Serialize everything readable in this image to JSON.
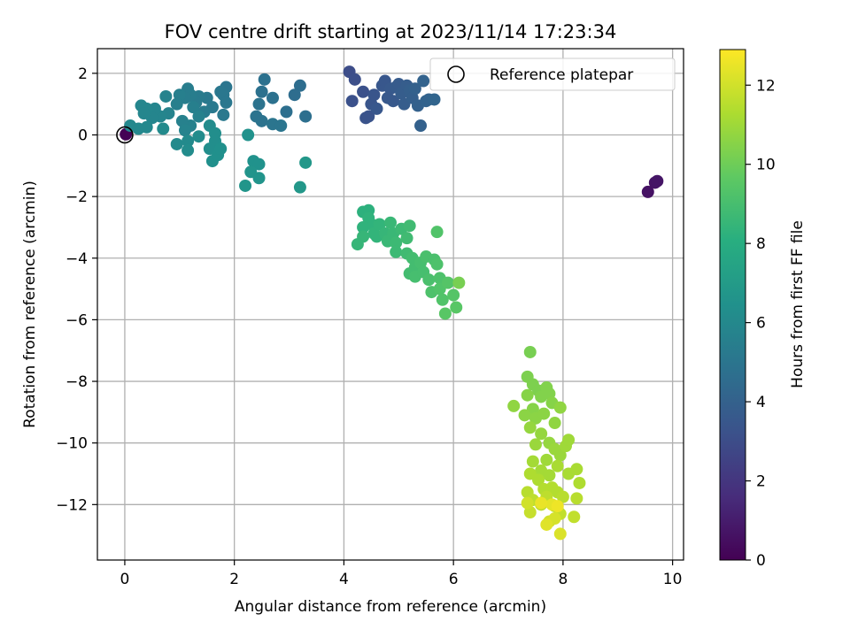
{
  "chart_data": {
    "type": "scatter",
    "title": "FOV centre drift starting at 2023/11/14 17:23:34",
    "xlabel": "Angular distance from reference (arcmin)",
    "ylabel": "Rotation from reference (arcmin)",
    "xlim": [
      -0.5,
      10.2
    ],
    "ylim": [
      -13.8,
      2.8
    ],
    "xticks": [
      0,
      2,
      4,
      6,
      8,
      10
    ],
    "yticks": [
      2,
      0,
      -2,
      -4,
      -6,
      -8,
      -10,
      -12
    ],
    "grid": true,
    "legend": {
      "position": "top-right",
      "entries": [
        "Reference platepar"
      ]
    },
    "reference_point": [
      0,
      0
    ],
    "colorbar": {
      "label": "Hours from first FF file",
      "colormap": "viridis",
      "range": [
        0,
        12.9
      ],
      "ticks": [
        0,
        2,
        4,
        6,
        8,
        10,
        12
      ]
    },
    "points": [
      [
        0.02,
        0.02,
        0.05
      ],
      [
        9.55,
        -1.85,
        0.6
      ],
      [
        9.68,
        -1.55,
        0.7
      ],
      [
        9.72,
        -1.5,
        0.75
      ],
      [
        4.1,
        2.05,
        3.0
      ],
      [
        4.2,
        1.8,
        3.1
      ],
      [
        4.15,
        1.1,
        3.2
      ],
      [
        4.35,
        1.4,
        3.2
      ],
      [
        4.4,
        0.55,
        3.3
      ],
      [
        4.45,
        0.6,
        3.3
      ],
      [
        4.5,
        1.0,
        3.4
      ],
      [
        4.55,
        1.3,
        3.4
      ],
      [
        4.6,
        0.85,
        3.5
      ],
      [
        4.7,
        1.6,
        3.5
      ],
      [
        4.75,
        1.75,
        3.5
      ],
      [
        4.8,
        1.2,
        3.6
      ],
      [
        4.85,
        1.5,
        3.6
      ],
      [
        4.9,
        1.1,
        3.6
      ],
      [
        4.95,
        1.55,
        3.7
      ],
      [
        5.0,
        1.65,
        3.7
      ],
      [
        5.05,
        1.35,
        3.8
      ],
      [
        5.1,
        1.0,
        3.8
      ],
      [
        5.15,
        1.6,
        3.8
      ],
      [
        5.2,
        1.45,
        3.9
      ],
      [
        5.25,
        1.2,
        3.9
      ],
      [
        5.3,
        1.5,
        4.0
      ],
      [
        5.35,
        0.95,
        4.0
      ],
      [
        5.4,
        0.3,
        4.0
      ],
      [
        5.45,
        1.75,
        4.1
      ],
      [
        5.5,
        1.1,
        4.1
      ],
      [
        5.55,
        1.15,
        4.1
      ],
      [
        5.65,
        1.15,
        4.2
      ],
      [
        3.2,
        1.6,
        4.6
      ],
      [
        3.1,
        1.3,
        4.6
      ],
      [
        3.3,
        0.6,
        4.7
      ],
      [
        2.95,
        0.75,
        4.7
      ],
      [
        2.55,
        1.8,
        4.8
      ],
      [
        2.5,
        1.4,
        4.8
      ],
      [
        2.7,
        1.2,
        4.8
      ],
      [
        2.45,
        1.0,
        4.9
      ],
      [
        2.4,
        0.6,
        4.9
      ],
      [
        2.5,
        0.45,
        4.9
      ],
      [
        2.7,
        0.35,
        5.0
      ],
      [
        2.85,
        0.3,
        5.0
      ],
      [
        1.85,
        1.55,
        5.0
      ],
      [
        1.8,
        1.3,
        5.1
      ],
      [
        1.75,
        1.4,
        5.1
      ],
      [
        1.85,
        1.05,
        5.1
      ],
      [
        1.8,
        0.65,
        5.2
      ],
      [
        1.6,
        0.9,
        5.2
      ],
      [
        1.5,
        1.2,
        5.2
      ],
      [
        1.45,
        0.75,
        5.3
      ],
      [
        1.35,
        1.25,
        5.3
      ],
      [
        1.3,
        1.05,
        5.3
      ],
      [
        1.15,
        1.5,
        5.4
      ],
      [
        1.2,
        1.3,
        5.4
      ],
      [
        1.1,
        1.2,
        5.4
      ],
      [
        1.0,
        1.3,
        5.5
      ],
      [
        0.95,
        1.0,
        5.5
      ],
      [
        1.25,
        0.9,
        5.5
      ],
      [
        1.35,
        0.6,
        5.6
      ],
      [
        1.2,
        0.3,
        5.6
      ],
      [
        1.05,
        0.45,
        5.6
      ],
      [
        1.1,
        0.15,
        5.7
      ],
      [
        0.75,
        1.25,
        5.7
      ],
      [
        0.8,
        0.7,
        5.7
      ],
      [
        0.65,
        0.6,
        5.8
      ],
      [
        0.55,
        0.85,
        5.8
      ],
      [
        0.5,
        0.55,
        5.8
      ],
      [
        0.4,
        0.85,
        5.9
      ],
      [
        0.3,
        0.95,
        5.9
      ],
      [
        0.35,
        0.7,
        5.9
      ],
      [
        0.4,
        0.25,
        6.0
      ],
      [
        0.25,
        0.2,
        6.0
      ],
      [
        0.1,
        0.3,
        6.0
      ],
      [
        0.7,
        0.2,
        6.1
      ],
      [
        0.95,
        -0.3,
        6.1
      ],
      [
        1.15,
        -0.2,
        6.1
      ],
      [
        1.15,
        -0.5,
        6.2
      ],
      [
        1.35,
        -0.05,
        6.2
      ],
      [
        1.55,
        0.3,
        6.2
      ],
      [
        1.65,
        0.05,
        6.3
      ],
      [
        1.65,
        -0.2,
        6.3
      ],
      [
        1.55,
        -0.45,
        6.3
      ],
      [
        1.6,
        -0.85,
        6.4
      ],
      [
        1.7,
        -0.65,
        6.4
      ],
      [
        1.75,
        -0.45,
        6.4
      ],
      [
        2.25,
        0.0,
        6.5
      ],
      [
        2.35,
        -0.85,
        6.5
      ],
      [
        2.45,
        -0.95,
        6.5
      ],
      [
        2.3,
        -1.2,
        6.6
      ],
      [
        2.45,
        -1.4,
        6.6
      ],
      [
        2.2,
        -1.65,
        6.7
      ],
      [
        3.2,
        -1.7,
        6.8
      ],
      [
        3.3,
        -0.9,
        6.8
      ],
      [
        4.45,
        -2.45,
        8.2
      ],
      [
        4.35,
        -2.5,
        8.2
      ],
      [
        4.45,
        -2.7,
        8.3
      ],
      [
        4.5,
        -2.9,
        8.3
      ],
      [
        4.35,
        -3.0,
        8.3
      ],
      [
        4.55,
        -3.2,
        8.4
      ],
      [
        4.65,
        -2.9,
        8.4
      ],
      [
        4.6,
        -3.3,
        8.4
      ],
      [
        4.35,
        -3.3,
        8.5
      ],
      [
        4.25,
        -3.55,
        8.5
      ],
      [
        4.75,
        -3.2,
        8.5
      ],
      [
        4.8,
        -3.45,
        8.6
      ],
      [
        4.85,
        -2.85,
        8.6
      ],
      [
        4.9,
        -3.2,
        8.6
      ],
      [
        4.95,
        -3.5,
        8.7
      ],
      [
        4.95,
        -3.8,
        8.7
      ],
      [
        5.05,
        -3.05,
        8.7
      ],
      [
        5.15,
        -3.35,
        8.8
      ],
      [
        5.2,
        -2.95,
        8.8
      ],
      [
        5.15,
        -3.85,
        8.8
      ],
      [
        5.25,
        -4.0,
        8.9
      ],
      [
        5.3,
        -4.3,
        8.9
      ],
      [
        5.2,
        -4.5,
        8.9
      ],
      [
        5.3,
        -4.6,
        9.0
      ],
      [
        5.4,
        -4.15,
        9.0
      ],
      [
        5.45,
        -4.45,
        9.0
      ],
      [
        5.5,
        -3.95,
        9.1
      ],
      [
        5.55,
        -4.7,
        9.1
      ],
      [
        5.65,
        -4.05,
        9.1
      ],
      [
        5.6,
        -5.1,
        9.2
      ],
      [
        5.7,
        -4.2,
        9.2
      ],
      [
        5.75,
        -4.65,
        9.2
      ],
      [
        5.7,
        -3.15,
        9.3
      ],
      [
        5.75,
        -5.0,
        9.3
      ],
      [
        5.8,
        -5.35,
        9.3
      ],
      [
        5.9,
        -4.8,
        9.4
      ],
      [
        6.0,
        -5.2,
        9.4
      ],
      [
        5.85,
        -5.8,
        9.5
      ],
      [
        6.05,
        -5.6,
        9.5
      ],
      [
        6.1,
        -4.8,
        10.2
      ],
      [
        7.4,
        -7.05,
        10.2
      ],
      [
        7.35,
        -7.85,
        10.3
      ],
      [
        7.45,
        -8.1,
        10.3
      ],
      [
        7.55,
        -8.3,
        10.3
      ],
      [
        7.6,
        -8.5,
        10.4
      ],
      [
        7.7,
        -8.2,
        10.4
      ],
      [
        7.75,
        -8.4,
        10.4
      ],
      [
        7.8,
        -8.7,
        10.5
      ],
      [
        7.35,
        -8.45,
        10.5
      ],
      [
        7.45,
        -8.9,
        10.5
      ],
      [
        7.3,
        -9.1,
        10.6
      ],
      [
        7.5,
        -9.2,
        10.6
      ],
      [
        7.65,
        -9.05,
        10.6
      ],
      [
        7.85,
        -9.35,
        10.7
      ],
      [
        7.95,
        -8.85,
        10.7
      ],
      [
        7.1,
        -8.8,
        10.7
      ],
      [
        7.4,
        -9.5,
        10.8
      ],
      [
        7.6,
        -9.7,
        10.8
      ],
      [
        7.75,
        -10.0,
        10.8
      ],
      [
        7.5,
        -10.05,
        10.9
      ],
      [
        7.85,
        -10.2,
        10.9
      ],
      [
        7.95,
        -10.4,
        10.9
      ],
      [
        8.05,
        -10.1,
        11.0
      ],
      [
        8.1,
        -9.9,
        11.0
      ],
      [
        7.7,
        -10.55,
        11.0
      ],
      [
        7.45,
        -10.6,
        11.1
      ],
      [
        7.6,
        -10.9,
        11.1
      ],
      [
        7.75,
        -11.05,
        11.1
      ],
      [
        7.9,
        -10.75,
        11.2
      ],
      [
        8.1,
        -11.0,
        11.2
      ],
      [
        8.25,
        -10.85,
        11.2
      ],
      [
        8.3,
        -11.3,
        11.3
      ],
      [
        7.4,
        -11.0,
        11.3
      ],
      [
        7.55,
        -11.2,
        11.3
      ],
      [
        7.65,
        -11.5,
        11.4
      ],
      [
        7.8,
        -11.45,
        11.4
      ],
      [
        7.9,
        -11.6,
        11.4
      ],
      [
        8.0,
        -11.75,
        11.5
      ],
      [
        8.25,
        -11.8,
        11.5
      ],
      [
        7.35,
        -11.6,
        11.5
      ],
      [
        7.45,
        -11.85,
        11.6
      ],
      [
        7.6,
        -12.0,
        11.6
      ],
      [
        7.7,
        -11.75,
        11.6
      ],
      [
        7.85,
        -12.05,
        11.7
      ],
      [
        7.95,
        -12.3,
        11.7
      ],
      [
        8.2,
        -12.4,
        11.7
      ],
      [
        7.4,
        -12.25,
        11.8
      ],
      [
        7.35,
        -11.95,
        12.0
      ],
      [
        7.75,
        -12.55,
        12.0
      ],
      [
        7.85,
        -12.45,
        12.1
      ],
      [
        7.95,
        -12.95,
        12.2
      ],
      [
        7.7,
        -12.65,
        12.3
      ],
      [
        7.8,
        -12.0,
        12.4
      ],
      [
        7.6,
        -11.95,
        12.5
      ],
      [
        7.9,
        -12.05,
        12.6
      ]
    ]
  }
}
